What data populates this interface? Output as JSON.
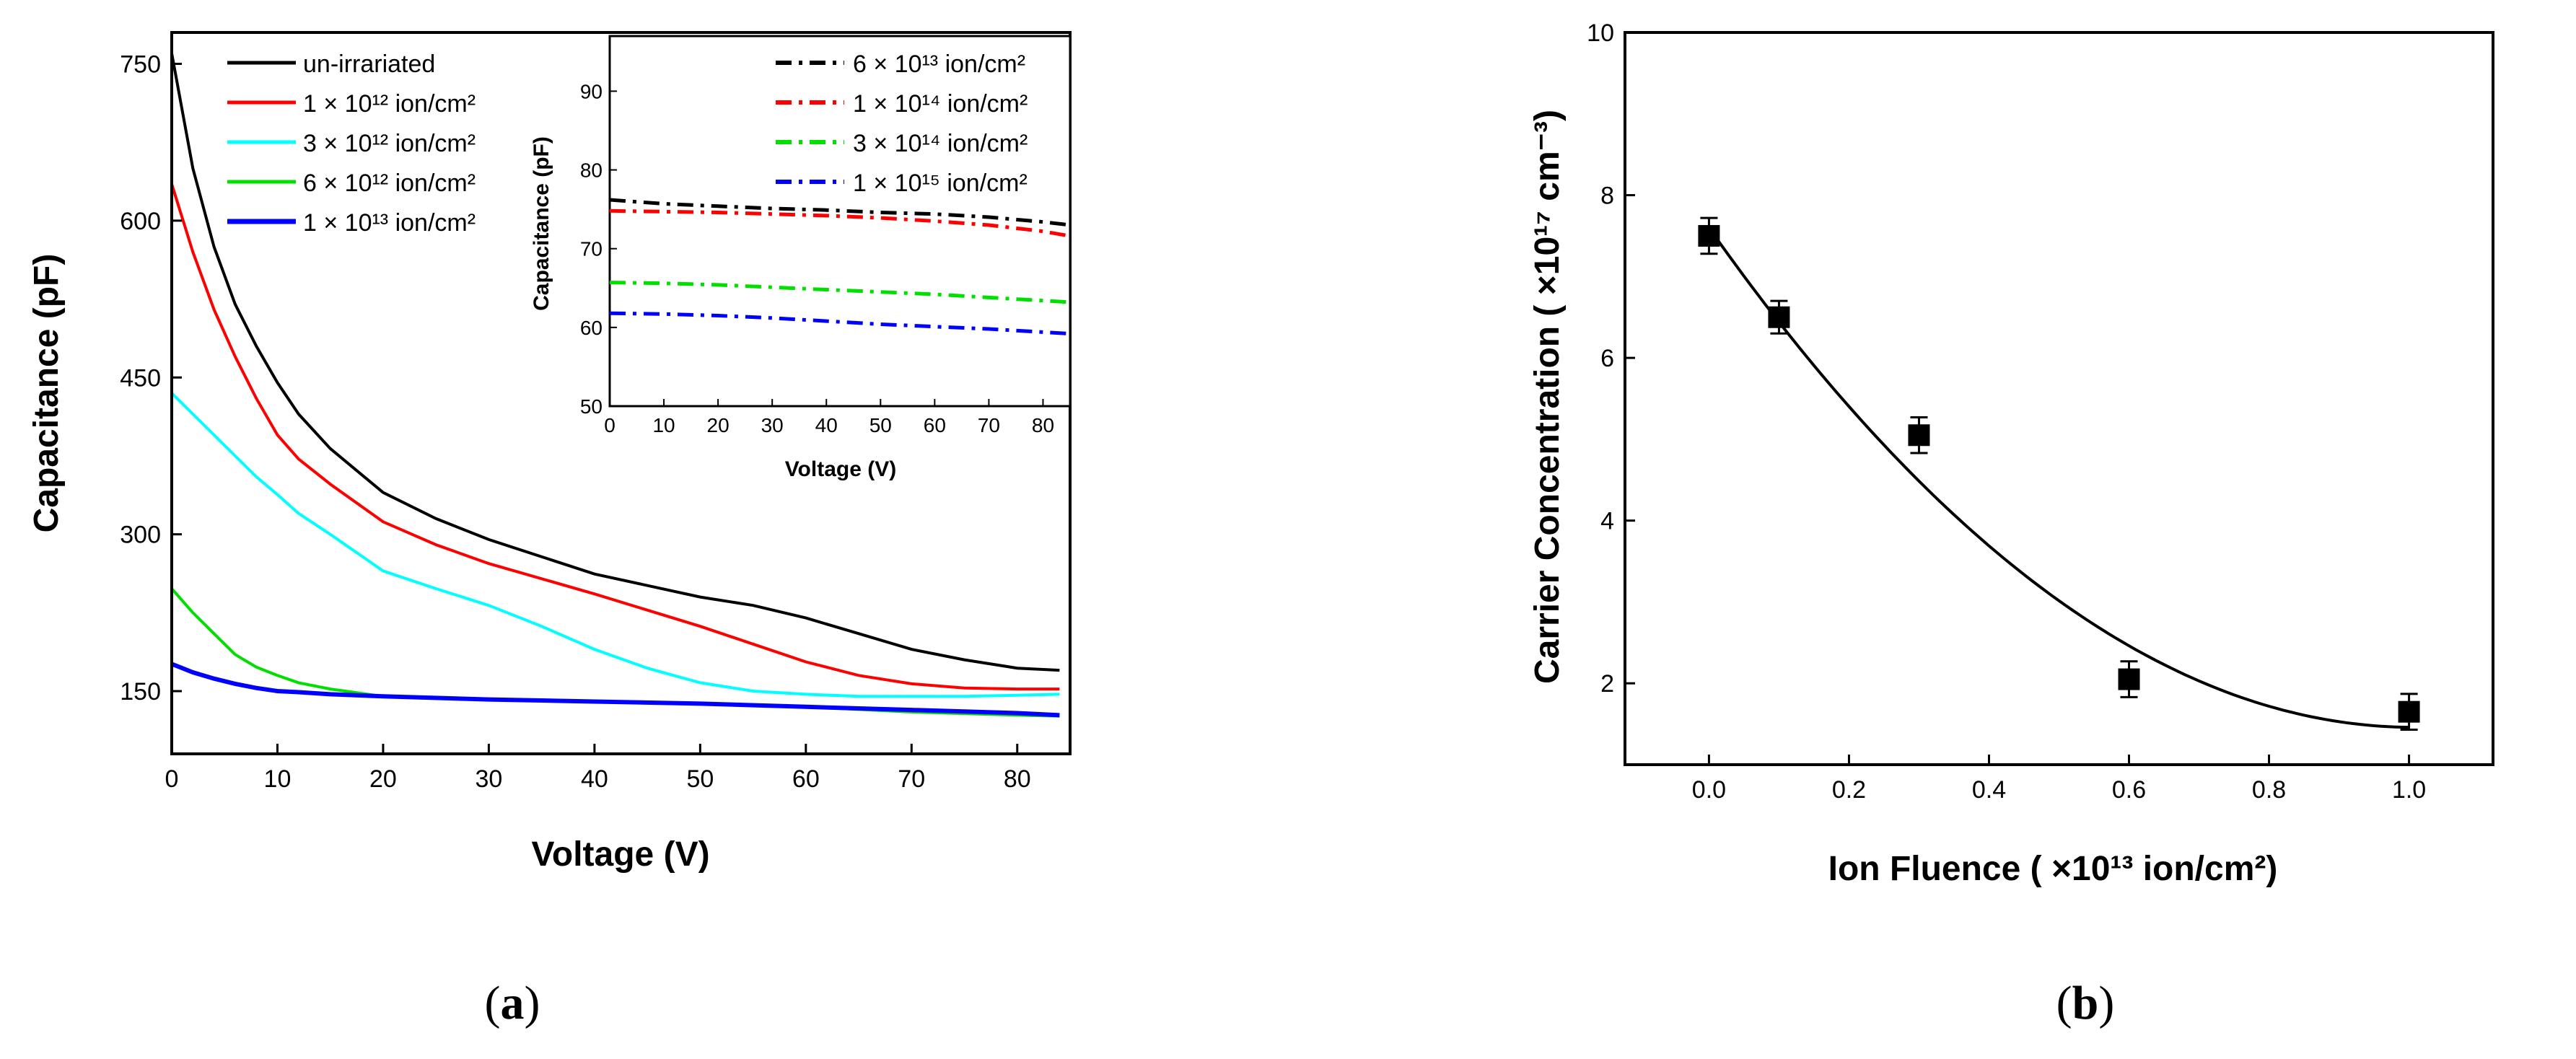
{
  "panels": [
    {
      "caption": {
        "open": "(",
        "letter": "a",
        "close": ")"
      },
      "chart_data": {
        "type": "line",
        "xlabel": "Voltage (V)",
        "ylabel": "Capacitance (pF)",
        "xlim": [
          0,
          85
        ],
        "ylim": [
          90,
          780
        ],
        "xticks": [
          "0",
          "10",
          "20",
          "30",
          "40",
          "50",
          "60",
          "70",
          "80"
        ],
        "yticks": [
          "150",
          "300",
          "450",
          "600",
          "750"
        ],
        "series": [
          {
            "name": "un-irrariated",
            "color": "#000000",
            "x": [
              0,
              2,
              4,
              6,
              8,
              10,
              12,
              15,
              20,
              25,
              30,
              40,
              50,
              55,
              60,
              65,
              70,
              75,
              80,
              84
            ],
            "y": [
              760,
              650,
              575,
              520,
              480,
              445,
              415,
              382,
              340,
              315,
              295,
              262,
              240,
              232,
              220,
              205,
              190,
              180,
              172,
              170
            ]
          },
          {
            "name": "1 × 10¹² ion/cm²",
            "color": "#ff0000",
            "x": [
              0,
              2,
              4,
              6,
              8,
              10,
              12,
              15,
              20,
              25,
              30,
              40,
              50,
              55,
              60,
              65,
              70,
              75,
              80,
              84
            ],
            "y": [
              635,
              570,
              515,
              470,
              430,
              395,
              372,
              348,
              312,
              290,
              272,
              243,
              212,
              195,
              178,
              165,
              157,
              153,
              152,
              152
            ]
          },
          {
            "name": "3 × 10¹² ion/cm²",
            "color": "#00ffff",
            "x": [
              0,
              2,
              4,
              6,
              8,
              10,
              12,
              15,
              20,
              25,
              30,
              35,
              40,
              45,
              50,
              55,
              60,
              65,
              70,
              75,
              80,
              84
            ],
            "y": [
              435,
              415,
              395,
              375,
              355,
              338,
              320,
              300,
              265,
              248,
              232,
              212,
              190,
              172,
              158,
              150,
              147,
              145,
              145,
              145,
              146,
              147
            ]
          },
          {
            "name": "6 × 10¹² ion/cm²",
            "color": "#00e000",
            "x": [
              0,
              2,
              4,
              6,
              8,
              10,
              12,
              15,
              20,
              30,
              40,
              50,
              60,
              70,
              80,
              84
            ],
            "y": [
              248,
              225,
              205,
              185,
              173,
              165,
              158,
              152,
              145,
              142,
              140,
              138,
              135,
              130,
              127,
              126
            ]
          },
          {
            "name": "1 × 10¹³ ion/cm²",
            "color": "#0000ff",
            "x": [
              0,
              2,
              4,
              6,
              8,
              10,
              12,
              15,
              20,
              30,
              40,
              50,
              60,
              70,
              80,
              84
            ],
            "y": [
              176,
              168,
              162,
              157,
              153,
              150,
              149,
              147,
              145,
              142,
              140,
              138,
              135,
              132,
              129,
              127
            ]
          }
        ],
        "inset": {
          "xlabel": "Voltage (V)",
          "ylabel": "Capacitance (pF)",
          "xlim": [
            0,
            85
          ],
          "ylim": [
            50,
            97
          ],
          "xticks": [
            "0",
            "10",
            "20",
            "30",
            "40",
            "50",
            "60",
            "70",
            "80"
          ],
          "yticks": [
            "50",
            "60",
            "70",
            "80",
            "90"
          ],
          "series": [
            {
              "name": "6 × 10¹³ ion/cm²",
              "color": "#000000",
              "x": [
                0,
                10,
                20,
                30,
                40,
                50,
                60,
                70,
                80,
                85
              ],
              "y": [
                76.2,
                75.7,
                75.4,
                75.1,
                74.9,
                74.6,
                74.4,
                74.0,
                73.4,
                73.0
              ]
            },
            {
              "name": "1 × 10¹⁴ ion/cm²",
              "color": "#ff0000",
              "x": [
                0,
                10,
                20,
                30,
                40,
                50,
                60,
                70,
                80,
                85
              ],
              "y": [
                74.8,
                74.7,
                74.6,
                74.4,
                74.2,
                73.9,
                73.5,
                73.0,
                72.2,
                71.6
              ]
            },
            {
              "name": "3 × 10¹⁴ ion/cm²",
              "color": "#00e000",
              "x": [
                0,
                10,
                20,
                30,
                40,
                50,
                60,
                70,
                80,
                85
              ],
              "y": [
                65.7,
                65.6,
                65.4,
                65.1,
                64.8,
                64.5,
                64.2,
                63.8,
                63.4,
                63.2
              ]
            },
            {
              "name": "1 × 10¹⁵ ion/cm²",
              "color": "#0000ff",
              "x": [
                0,
                10,
                20,
                30,
                40,
                50,
                60,
                70,
                80,
                85
              ],
              "y": [
                61.8,
                61.7,
                61.5,
                61.2,
                60.8,
                60.4,
                60.1,
                59.8,
                59.4,
                59.2
              ]
            }
          ]
        }
      }
    },
    {
      "caption": {
        "open": "(",
        "letter": "b",
        "close": ")"
      },
      "chart_data": {
        "type": "scatter",
        "xlabel": "Ion Fluence ( ×10¹³ ion/cm²)",
        "ylabel": "Carrier Concentration ( ×10¹⁷ cm⁻³)",
        "xlim": [
          -0.12,
          1.12
        ],
        "ylim": [
          1,
          10
        ],
        "xticks": [
          "0.0",
          "0.2",
          "0.4",
          "0.6",
          "0.8",
          "1.0"
        ],
        "yticks": [
          "2",
          "4",
          "6",
          "8",
          "10"
        ],
        "points": [
          {
            "x": 0.0,
            "y": 7.5,
            "err": 0.22
          },
          {
            "x": 0.1,
            "y": 6.5,
            "err": 0.2
          },
          {
            "x": 0.3,
            "y": 5.05,
            "err": 0.22
          },
          {
            "x": 0.6,
            "y": 2.05,
            "err": 0.22
          },
          {
            "x": 1.0,
            "y": 1.65,
            "err": 0.22
          }
        ],
        "fit": {
          "type": "quadratic",
          "coefficients": [
            7.6,
            -12.2,
            6.06
          ],
          "x_range": [
            0,
            1.0
          ],
          "color": "#000000"
        }
      }
    }
  ]
}
